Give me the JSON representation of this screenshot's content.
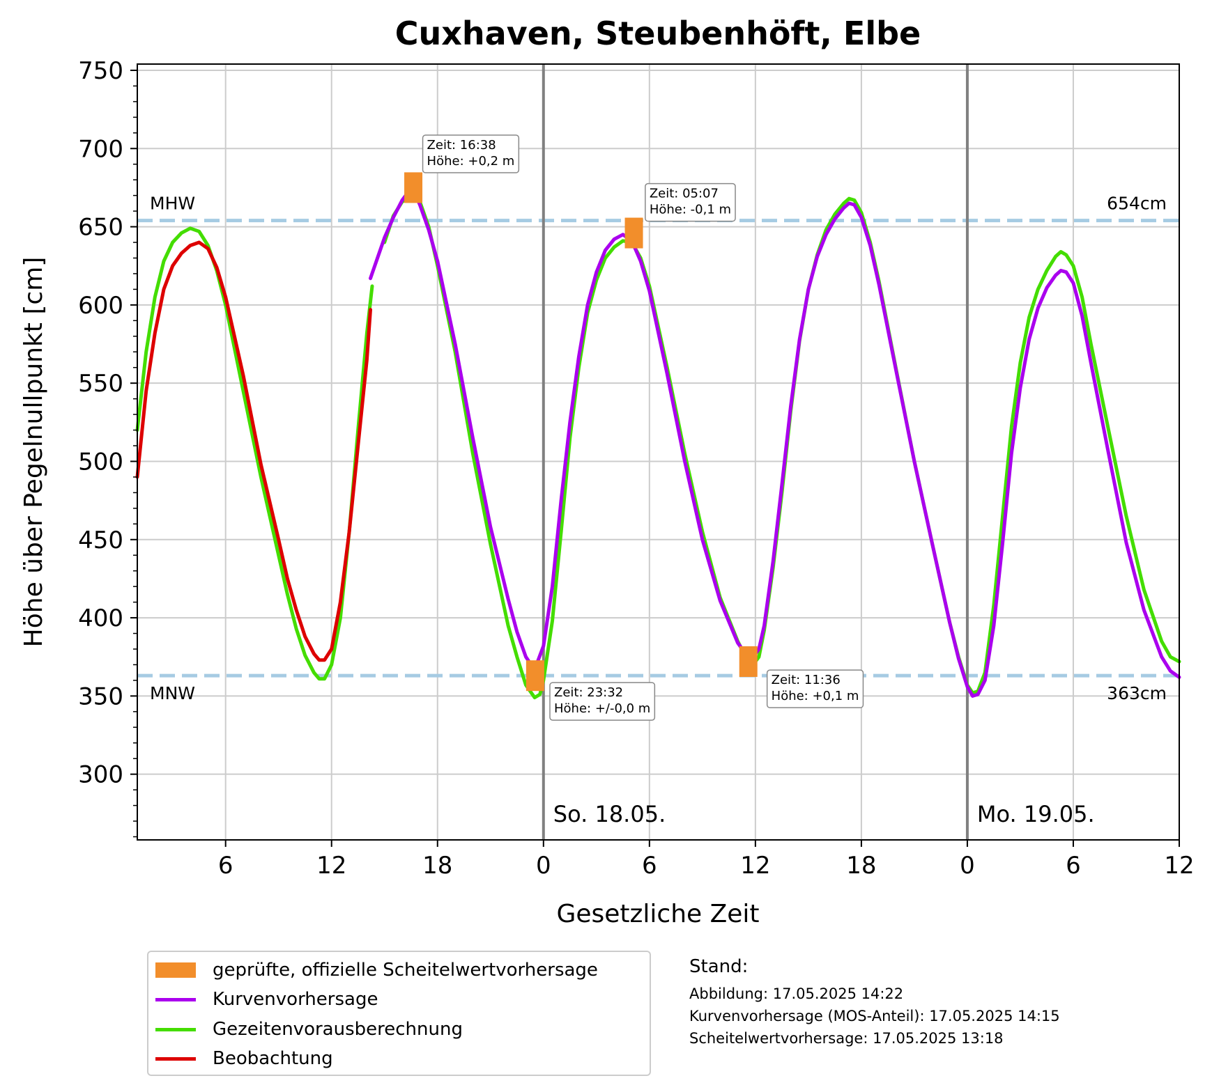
{
  "chart_data": {
    "type": "line",
    "title": "Cuxhaven, Steubenhöft, Elbe",
    "xlabel": "Gesetzliche Zeit",
    "ylabel": "Höhe über Pegelnullpunkt [cm]",
    "ylim": [
      258,
      754
    ],
    "xlim": [
      1,
      60
    ],
    "x_unit": "hours since 17.05. 00:00",
    "y_ticks": [
      300,
      350,
      400,
      450,
      500,
      550,
      600,
      650,
      700,
      750
    ],
    "x_ticks": [
      {
        "x": 6,
        "label": "6"
      },
      {
        "x": 12,
        "label": "12"
      },
      {
        "x": 18,
        "label": "18"
      },
      {
        "x": 24,
        "label": "0"
      },
      {
        "x": 30,
        "label": "6"
      },
      {
        "x": 36,
        "label": "12"
      },
      {
        "x": 42,
        "label": "18"
      },
      {
        "x": 48,
        "label": "0"
      },
      {
        "x": 54,
        "label": "6"
      },
      {
        "x": 60,
        "label": "12"
      }
    ],
    "grid": true,
    "day_markers": [
      {
        "x": 24,
        "label": "So. 18.05."
      },
      {
        "x": 48,
        "label": "Mo. 19.05."
      }
    ],
    "reference_lines": [
      {
        "y": 654,
        "left_label": "MHW",
        "right_label": "654cm"
      },
      {
        "y": 363,
        "left_label": "MNW",
        "right_label": "363cm"
      }
    ],
    "series": [
      {
        "name": "Gezeitenvorausberechnung",
        "color": "#44dd00",
        "points": [
          [
            1.0,
            520
          ],
          [
            1.5,
            570
          ],
          [
            2.0,
            605
          ],
          [
            2.5,
            628
          ],
          [
            3.0,
            640
          ],
          [
            3.5,
            646
          ],
          [
            4.0,
            649
          ],
          [
            4.5,
            647
          ],
          [
            5.0,
            638
          ],
          [
            5.5,
            622
          ],
          [
            6.0,
            600
          ],
          [
            7.0,
            545
          ],
          [
            8.0,
            490
          ],
          [
            9.0,
            440
          ],
          [
            9.5,
            415
          ],
          [
            10.0,
            393
          ],
          [
            10.5,
            376
          ],
          [
            11.0,
            365
          ],
          [
            11.3,
            361
          ],
          [
            11.6,
            361
          ],
          [
            12.0,
            370
          ],
          [
            12.5,
            400
          ],
          [
            13.0,
            455
          ],
          [
            13.5,
            520
          ],
          [
            14.0,
            582
          ],
          [
            14.3,
            612
          ]
        ]
      },
      {
        "name": "Gezeitenvorausberechnung",
        "color": "#44dd00",
        "points": [
          [
            15.0,
            640
          ],
          [
            15.5,
            657
          ],
          [
            16.0,
            666
          ],
          [
            16.5,
            669
          ],
          [
            17.0,
            666
          ],
          [
            17.5,
            650
          ],
          [
            18.0,
            625
          ],
          [
            19.0,
            570
          ],
          [
            20.0,
            505
          ],
          [
            21.0,
            447
          ],
          [
            22.0,
            395
          ],
          [
            22.5,
            375
          ],
          [
            23.0,
            357
          ],
          [
            23.5,
            349
          ],
          [
            23.8,
            351
          ],
          [
            24.0,
            360
          ],
          [
            24.5,
            398
          ],
          [
            25.0,
            455
          ],
          [
            25.5,
            515
          ],
          [
            26.0,
            560
          ],
          [
            26.5,
            595
          ],
          [
            27.0,
            616
          ],
          [
            27.5,
            630
          ],
          [
            28.0,
            637
          ],
          [
            28.5,
            641
          ],
          [
            29.0,
            640
          ],
          [
            29.5,
            630
          ],
          [
            30.0,
            612
          ],
          [
            31.0,
            560
          ],
          [
            32.0,
            505
          ],
          [
            33.0,
            455
          ],
          [
            34.0,
            413
          ],
          [
            35.0,
            385
          ],
          [
            35.5,
            374
          ],
          [
            35.8,
            369
          ],
          [
            36.2,
            375
          ],
          [
            36.5,
            392
          ],
          [
            37.0,
            432
          ],
          [
            37.5,
            480
          ],
          [
            38.0,
            532
          ],
          [
            38.5,
            577
          ],
          [
            39.0,
            610
          ],
          [
            39.5,
            632
          ],
          [
            40.0,
            648
          ],
          [
            40.5,
            658
          ],
          [
            41.0,
            665
          ],
          [
            41.3,
            668
          ],
          [
            41.6,
            667
          ],
          [
            42.0,
            659
          ],
          [
            42.5,
            640
          ],
          [
            43.0,
            615
          ],
          [
            44.0,
            557
          ],
          [
            45.0,
            500
          ],
          [
            46.0,
            448
          ],
          [
            47.0,
            397
          ],
          [
            47.5,
            375
          ],
          [
            48.0,
            357
          ],
          [
            48.3,
            352
          ],
          [
            48.6,
            353
          ],
          [
            49.0,
            365
          ],
          [
            49.5,
            408
          ],
          [
            50.0,
            465
          ],
          [
            50.5,
            522
          ],
          [
            51.0,
            563
          ],
          [
            51.5,
            592
          ],
          [
            52.0,
            610
          ],
          [
            52.5,
            622
          ],
          [
            53.0,
            631
          ],
          [
            53.3,
            634
          ],
          [
            53.6,
            632
          ],
          [
            54.0,
            625
          ],
          [
            54.5,
            605
          ],
          [
            55.0,
            575
          ],
          [
            56.0,
            520
          ],
          [
            57.0,
            465
          ],
          [
            58.0,
            418
          ],
          [
            59.0,
            385
          ],
          [
            59.5,
            375
          ],
          [
            60.0,
            372
          ]
        ]
      },
      {
        "name": "Kurvenvorhersage",
        "color": "#aa00ee",
        "points": [
          [
            14.2,
            617
          ],
          [
            14.6,
            630
          ],
          [
            15.0,
            643
          ],
          [
            15.5,
            656
          ],
          [
            16.0,
            667
          ],
          [
            16.4,
            673
          ],
          [
            16.7,
            672
          ],
          [
            17.0,
            664
          ],
          [
            17.5,
            648
          ],
          [
            18.0,
            628
          ],
          [
            19.0,
            575
          ],
          [
            20.0,
            515
          ],
          [
            21.0,
            458
          ],
          [
            22.0,
            412
          ],
          [
            22.5,
            391
          ],
          [
            23.0,
            375
          ],
          [
            23.3,
            370
          ],
          [
            23.6,
            370
          ],
          [
            24.0,
            382
          ],
          [
            24.5,
            420
          ],
          [
            25.0,
            475
          ],
          [
            25.5,
            525
          ],
          [
            26.0,
            567
          ],
          [
            26.5,
            600
          ],
          [
            27.0,
            621
          ],
          [
            27.5,
            635
          ],
          [
            28.0,
            642
          ],
          [
            28.5,
            645
          ],
          [
            29.0,
            641
          ],
          [
            29.5,
            628
          ],
          [
            30.0,
            609
          ],
          [
            31.0,
            556
          ],
          [
            32.0,
            500
          ],
          [
            33.0,
            450
          ],
          [
            34.0,
            411
          ],
          [
            35.0,
            384
          ],
          [
            35.5,
            376
          ],
          [
            35.8,
            374
          ],
          [
            36.2,
            380
          ],
          [
            36.5,
            395
          ],
          [
            37.0,
            436
          ],
          [
            37.5,
            485
          ],
          [
            38.0,
            535
          ],
          [
            38.5,
            578
          ],
          [
            39.0,
            610
          ],
          [
            39.5,
            631
          ],
          [
            40.0,
            645
          ],
          [
            40.5,
            655
          ],
          [
            41.0,
            662
          ],
          [
            41.3,
            665
          ],
          [
            41.6,
            664
          ],
          [
            42.0,
            656
          ],
          [
            42.5,
            638
          ],
          [
            43.0,
            613
          ],
          [
            44.0,
            556
          ],
          [
            45.0,
            500
          ],
          [
            46.0,
            448
          ],
          [
            47.0,
            397
          ],
          [
            47.5,
            374
          ],
          [
            48.0,
            356
          ],
          [
            48.3,
            350
          ],
          [
            48.6,
            351
          ],
          [
            49.0,
            360
          ],
          [
            49.5,
            395
          ],
          [
            50.0,
            448
          ],
          [
            50.5,
            505
          ],
          [
            51.0,
            547
          ],
          [
            51.5,
            578
          ],
          [
            52.0,
            598
          ],
          [
            52.5,
            611
          ],
          [
            53.0,
            619
          ],
          [
            53.3,
            622
          ],
          [
            53.6,
            621
          ],
          [
            54.0,
            614
          ],
          [
            54.5,
            593
          ],
          [
            55.0,
            563
          ],
          [
            56.0,
            505
          ],
          [
            57.0,
            448
          ],
          [
            58.0,
            405
          ],
          [
            59.0,
            375
          ],
          [
            59.5,
            366
          ],
          [
            60.0,
            362
          ]
        ]
      },
      {
        "name": "Beobachtung",
        "color": "#dd0000",
        "points": [
          [
            1.0,
            490
          ],
          [
            1.5,
            545
          ],
          [
            2.0,
            582
          ],
          [
            2.5,
            610
          ],
          [
            3.0,
            625
          ],
          [
            3.5,
            633
          ],
          [
            4.0,
            638
          ],
          [
            4.5,
            640
          ],
          [
            5.0,
            636
          ],
          [
            5.5,
            624
          ],
          [
            6.0,
            605
          ],
          [
            7.0,
            555
          ],
          [
            8.0,
            498
          ],
          [
            9.0,
            450
          ],
          [
            9.5,
            425
          ],
          [
            10.0,
            405
          ],
          [
            10.5,
            388
          ],
          [
            11.0,
            377
          ],
          [
            11.3,
            373
          ],
          [
            11.6,
            373
          ],
          [
            12.0,
            380
          ],
          [
            12.5,
            410
          ],
          [
            13.0,
            455
          ],
          [
            13.5,
            510
          ],
          [
            14.0,
            565
          ],
          [
            14.2,
            597
          ]
        ]
      }
    ],
    "peak_markers": [
      {
        "x": 16.63,
        "y": 675,
        "label_time": "Zeit: 16:38",
        "label_height": "Höhe: +0,2 m",
        "box_at": [
          17.4,
          697
        ]
      },
      {
        "x": 23.53,
        "y": 363,
        "label_time": "Zeit: 23:32",
        "label_height": "Höhe: +/-0,0 m",
        "box_at": [
          24.6,
          347
        ]
      },
      {
        "x": 29.12,
        "y": 646,
        "label_time": "Zeit: 05:07",
        "label_height": "Höhe: -0,1 m",
        "box_at": [
          30.0,
          666
        ]
      },
      {
        "x": 35.6,
        "y": 372,
        "label_time": "Zeit: 11:36",
        "label_height": "Höhe: +0,1 m",
        "box_at": [
          36.9,
          355
        ]
      }
    ],
    "marker_color": "#f28e2b",
    "legend": {
      "placement": "below-left",
      "entries": [
        {
          "label": "geprüfte, offizielle Scheitelwertvorhersage",
          "color": "#f28e2b",
          "kind": "rect"
        },
        {
          "label": "Kurvenvorhersage",
          "color": "#aa00ee",
          "kind": "line"
        },
        {
          "label": "Gezeitenvorausberechnung",
          "color": "#44dd00",
          "kind": "line"
        },
        {
          "label": "Beobachtung",
          "color": "#dd0000",
          "kind": "line"
        }
      ]
    }
  },
  "stand": {
    "title": "Stand:",
    "lines": [
      "Abbildung: 17.05.2025 14:22",
      "Kurvenvorhersage (MOS-Anteil): 17.05.2025 14:15",
      "Scheitelwertvorhersage: 17.05.2025 13:18"
    ]
  },
  "colors": {
    "reference_line": "#a6cbe3",
    "grid": "#cccccc",
    "day_line": "#808080"
  }
}
